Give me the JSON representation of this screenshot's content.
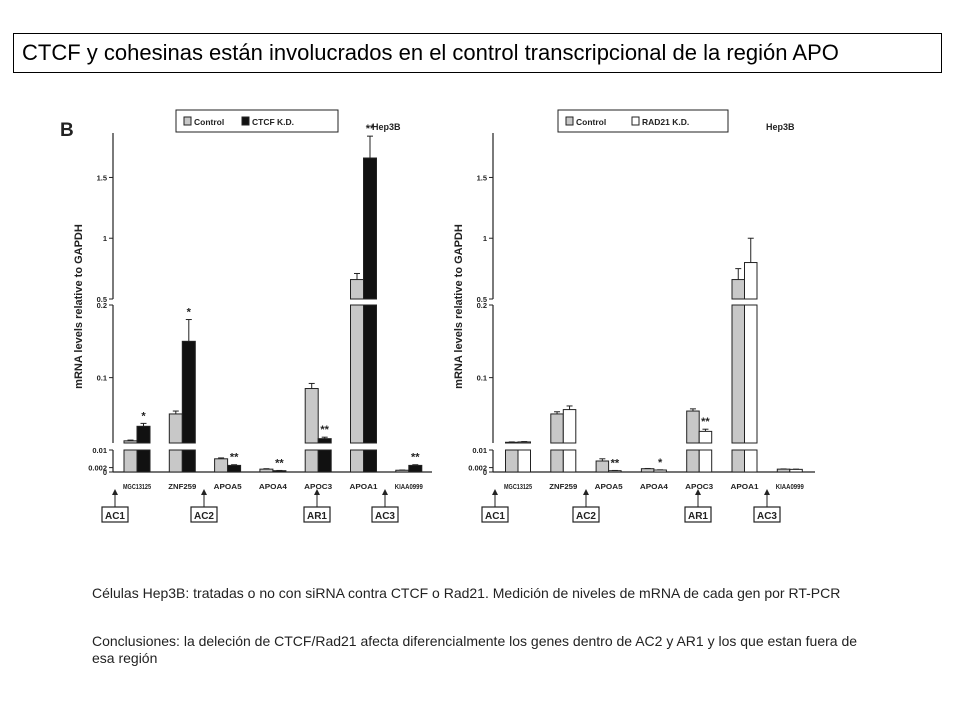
{
  "slide": {
    "title": "CTCF y cohesinas están involucrados en el control transcripcional de la región APO",
    "caption_1": "Células Hep3B: tratadas o no con siRNA contra CTCF o Rad21. Medición de niveles de mRNA de cada gen por RT-PCR",
    "caption_2": "Conclusiones: la deleción de CTCF/Rad21 afecta diferencialmente los genes dentro de AC2 y AR1 y los que estan fuera de esa región"
  },
  "panel_label": "B",
  "colors": {
    "control": "#c8c8c8",
    "ctcf_kd": "#111111",
    "rad21_kd": "#ffffff",
    "axis": "#222222"
  },
  "chart_data": [
    {
      "type": "bar",
      "cell_line": "Hep3B",
      "ylabel": "mRNA levels relative to GAPDH",
      "ylim": [
        0,
        1.8
      ],
      "y_axis_break": {
        "lower_segment": [
          0,
          0.01
        ],
        "middle_segment": [
          0.01,
          0.2
        ],
        "upper_segment": [
          0.5,
          1.8
        ]
      },
      "yticks": [
        "0",
        "0.002",
        "0.01",
        "0.1",
        "0.2",
        "0.5",
        "1",
        "1.5"
      ],
      "categories": [
        "MGC13125",
        "ZNF259",
        "APOA5",
        "APOA4",
        "APOC3",
        "APOA1",
        "KIAA0999"
      ],
      "series": [
        {
          "name": "Control",
          "values": [
            0.013,
            0.05,
            0.006,
            0.0013,
            0.085,
            0.66,
            0.0008
          ],
          "errors": [
            0.001,
            0.004,
            0.0004,
            0.0002,
            0.007,
            0.05,
            0.0001
          ]
        },
        {
          "name": "CTCF K.D.",
          "values": [
            0.033,
            0.15,
            0.003,
            0.0006,
            0.016,
            1.66,
            0.003
          ],
          "errors": [
            0.004,
            0.03,
            0.0003,
            0.0001,
            0.002,
            0.18,
            0.0003
          ]
        }
      ],
      "significance": [
        "*",
        "*",
        "**",
        "**",
        "**",
        "**",
        "**"
      ],
      "regions": [
        {
          "label": "AC1",
          "gene": "MGC13125"
        },
        {
          "label": "AC2",
          "gene": "APOA5"
        },
        {
          "label": "AR1",
          "gene": "APOC3"
        },
        {
          "label": "AC3",
          "gene": "KIAA0999"
        }
      ]
    },
    {
      "type": "bar",
      "cell_line": "Hep3B",
      "ylabel": "mRNA levels relative to GAPDH",
      "ylim": [
        0,
        1.8
      ],
      "y_axis_break": {
        "lower_segment": [
          0,
          0.01
        ],
        "middle_segment": [
          0.01,
          0.2
        ],
        "upper_segment": [
          0.5,
          1.8
        ]
      },
      "yticks": [
        "0",
        "0.002",
        "0.01",
        "0.1",
        "0.2",
        "0.5",
        "1",
        "1.5"
      ],
      "categories": [
        "MGC13125",
        "ZNF259",
        "APOA5",
        "APOA4",
        "APOC3",
        "APOA1",
        "KIAA0999"
      ],
      "series": [
        {
          "name": "Control",
          "values": [
            0.011,
            0.05,
            0.005,
            0.0015,
            0.054,
            0.66,
            0.0013
          ],
          "errors": [
            0.0005,
            0.003,
            0.001,
            0.0001,
            0.003,
            0.09,
            0.0001
          ]
        },
        {
          "name": "RAD21 K.D.",
          "values": [
            0.0115,
            0.056,
            0.0006,
            0.0009,
            0.026,
            0.8,
            0.0012
          ],
          "errors": [
            0.0005,
            0.005,
            0.0001,
            0.0001,
            0.003,
            0.2,
            0.0001
          ]
        }
      ],
      "significance": [
        "",
        "",
        "**",
        "*",
        "**",
        "",
        ""
      ],
      "regions": [
        {
          "label": "AC1",
          "gene": "MGC13125"
        },
        {
          "label": "AC2",
          "gene": "APOA5"
        },
        {
          "label": "AR1",
          "gene": "APOC3"
        },
        {
          "label": "AC3",
          "gene": "KIAA0999"
        }
      ]
    }
  ]
}
